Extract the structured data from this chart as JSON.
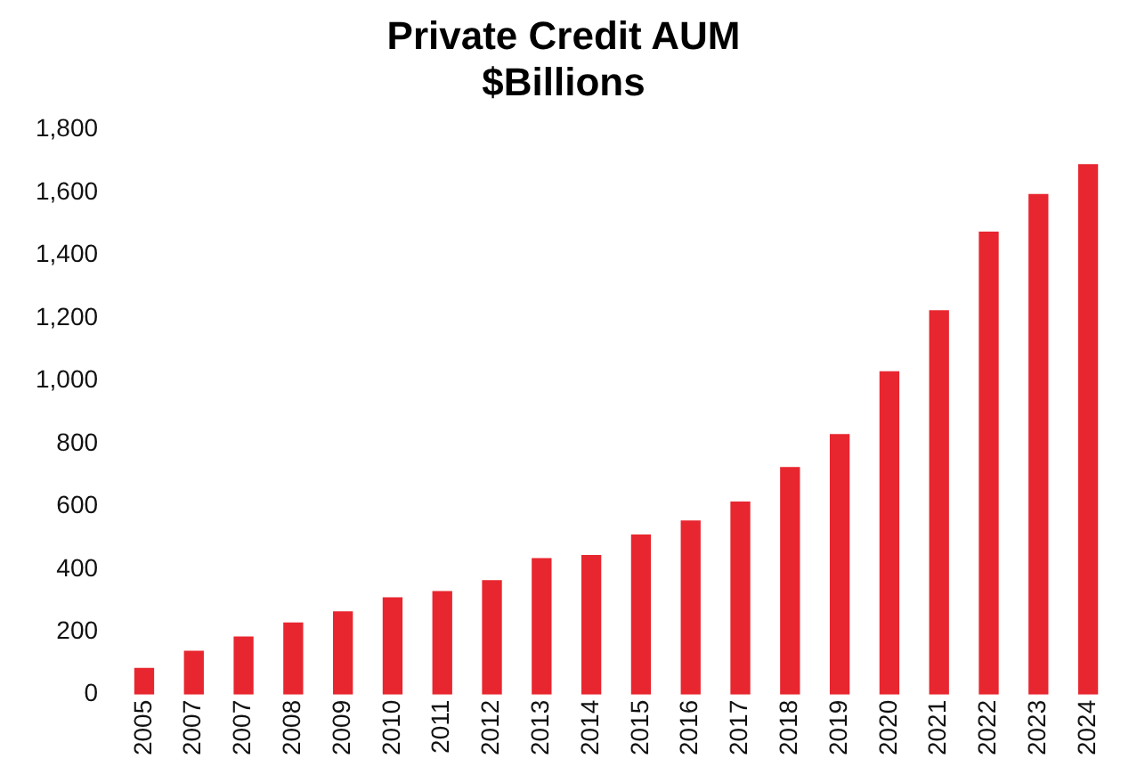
{
  "chart_data": {
    "type": "bar",
    "title": "Private Credit AUM",
    "subtitle": "$Billions",
    "categories": [
      "2005",
      "2007",
      "2007",
      "2008",
      "2009",
      "2010",
      "2011",
      "2012",
      "2013",
      "2014",
      "2015",
      "2016",
      "2017",
      "2018",
      "2019",
      "2020",
      "2021",
      "2022",
      "2023",
      "2024"
    ],
    "values": [
      85,
      140,
      185,
      230,
      265,
      310,
      330,
      365,
      435,
      445,
      510,
      555,
      615,
      725,
      830,
      1030,
      1225,
      1475,
      1595,
      1690
    ],
    "color": "#e8262f",
    "ylim": [
      0,
      1800
    ],
    "yticks": [
      0,
      200,
      400,
      600,
      800,
      {
        "value": 1000,
        "label": "1,000"
      },
      {
        "value": 1200,
        "label": "1,200"
      },
      {
        "value": 1400,
        "label": "1,400"
      },
      {
        "value": 1600,
        "label": "1,600"
      },
      {
        "value": 1800,
        "label": "1,800"
      }
    ],
    "grid": false,
    "legend": false
  }
}
